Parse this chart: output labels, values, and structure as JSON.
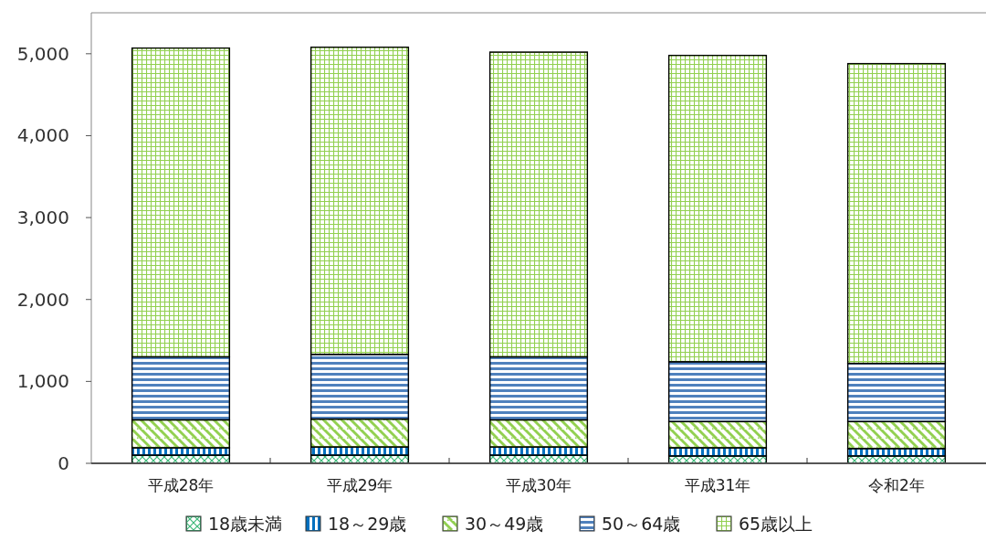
{
  "chart_data": {
    "type": "bar",
    "stacked": true,
    "categories": [
      "平成28年",
      "平成29年",
      "平成30年",
      "平成31年",
      "令和2年"
    ],
    "series": [
      {
        "name": "18歳未満",
        "color": "#3cb878",
        "values": [
          100,
          100,
          100,
          90,
          90
        ]
      },
      {
        "name": "18～29歳",
        "color": "#0070c0",
        "values": [
          90,
          100,
          100,
          100,
          90
        ]
      },
      {
        "name": "30～49歳",
        "color": "#92d050",
        "values": [
          340,
          340,
          330,
          320,
          330
        ]
      },
      {
        "name": "50～64歳",
        "color": "#4f81bd",
        "values": [
          770,
          790,
          770,
          730,
          710
        ]
      },
      {
        "name": "65歳以上",
        "color": "#92d050",
        "values": [
          3770,
          3750,
          3720,
          3740,
          3660
        ]
      }
    ],
    "ylim": [
      0,
      5500
    ],
    "yticks": [
      0,
      {
        "value": 1000,
        "label": "1,000"
      },
      {
        "value": 2000,
        "label": "2,000"
      },
      {
        "value": 3000,
        "label": "3,000"
      },
      {
        "value": 4000,
        "label": "4,000"
      },
      {
        "value": 5000,
        "label": "5,000"
      }
    ],
    "grid": false,
    "legend": "bottom"
  }
}
